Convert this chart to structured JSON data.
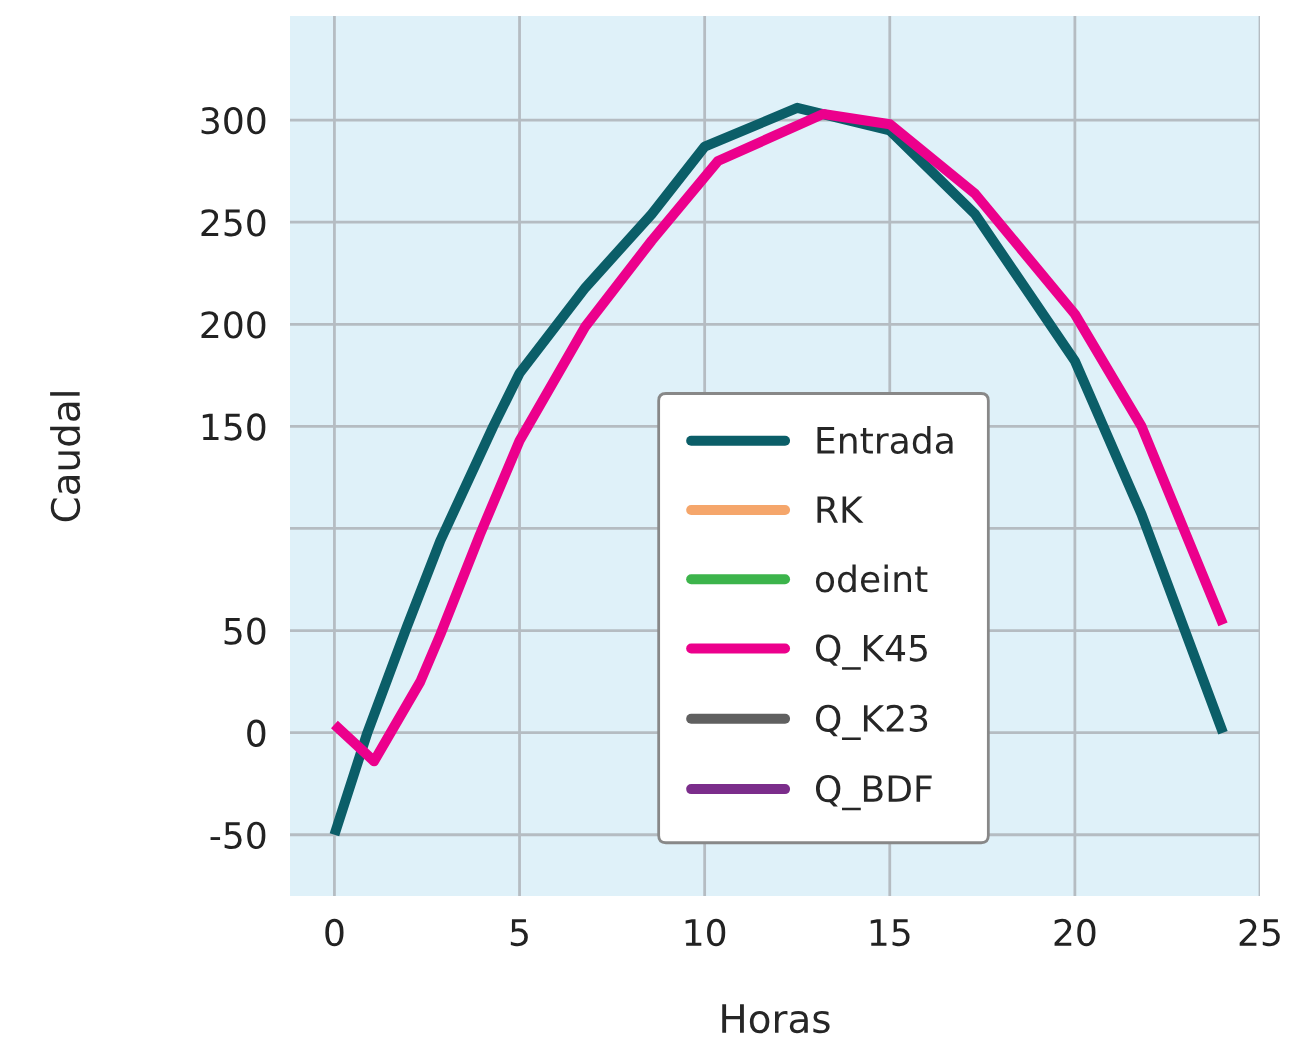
{
  "chart_data": {
    "type": "line",
    "xlabel": "Horas",
    "ylabel": "Caudal",
    "xlim": [
      -1.2,
      25
    ],
    "ylim": [
      -80,
      351
    ],
    "xticks": [
      0,
      5,
      10,
      15,
      20,
      25
    ],
    "yticks": [
      300,
      250,
      200,
      150,
      {
        "value": 100,
        "label": null
      },
      50,
      0,
      -50
    ],
    "grid": true,
    "legend": "bottom",
    "line_style": "solid",
    "marker": "none",
    "series": [
      {
        "name": "Entrada",
        "color": "#0b5e68",
        "x": [
          0,
          0.89,
          1.96,
          2.86,
          4.29,
          5.0,
          6.78,
          8.57,
          10.0,
          12.5,
          15,
          17.3,
          20,
          21.8,
          24
        ],
        "values": [
          -50,
          0,
          52,
          94,
          150,
          176,
          218,
          254,
          287,
          306,
          295,
          254,
          182,
          107,
          0
        ]
      },
      {
        "name": "RK",
        "color": "#f5a66b"
      },
      {
        "name": "odeint",
        "color": "#3cb44b"
      },
      {
        "name": "Q_K45",
        "color": "#ec008c",
        "x": [
          0,
          1.07,
          2.32,
          2.86,
          3.93,
          5,
          6.78,
          8.57,
          10.36,
          13.2,
          15,
          17.3,
          20,
          21.8,
          24
        ],
        "values": [
          4,
          -14,
          25,
          48,
          97,
          143,
          199,
          241,
          280,
          303,
          298,
          264,
          205,
          150,
          53
        ]
      },
      {
        "name": "Q_K23",
        "color": "#606060"
      },
      {
        "name": "Q_BDF",
        "color": "#7b2d8b"
      }
    ]
  }
}
